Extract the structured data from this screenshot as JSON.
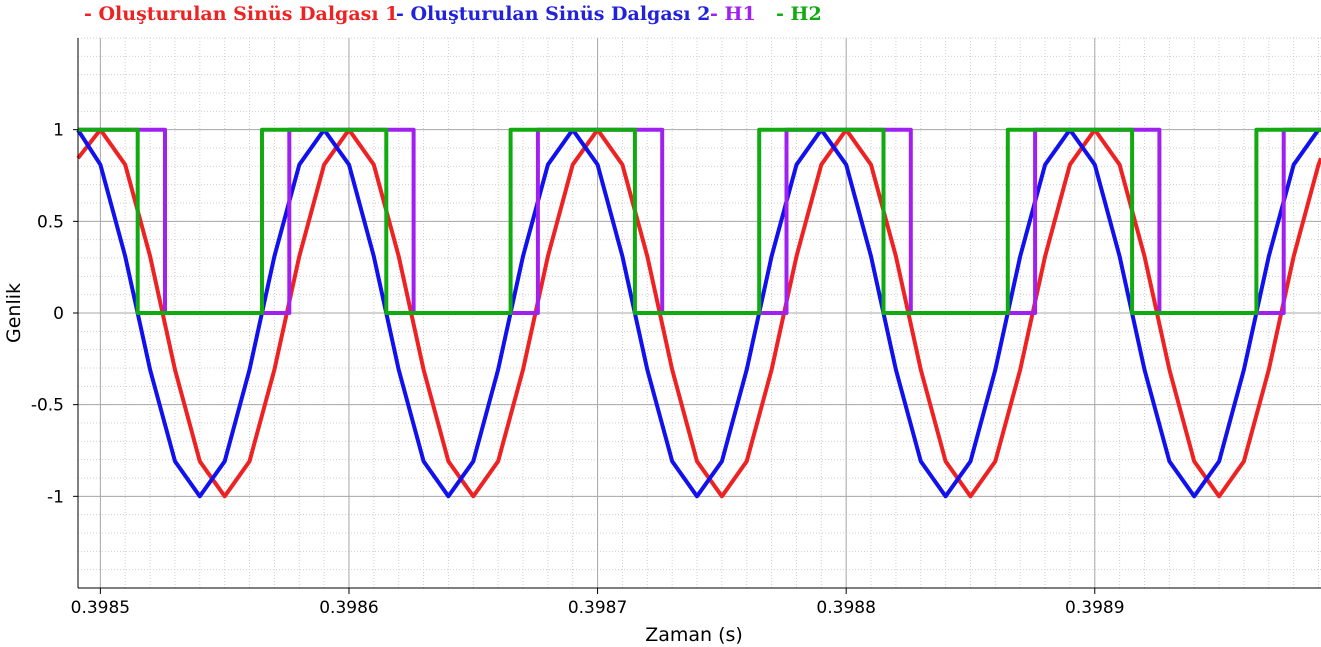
{
  "chart_data": {
    "type": "line",
    "title": "",
    "xlabel": "Zaman (s)",
    "ylabel": "Genlik",
    "xlim": [
      0.398491,
      0.398991
    ],
    "ylim": [
      -1.5,
      1.5
    ],
    "x_ticks": [
      0.3985,
      0.3986,
      0.3987,
      0.3988,
      0.3989
    ],
    "x_tick_labels": [
      "0.3985",
      "0.3986",
      "0.3987",
      "0.3988",
      "0.3989"
    ],
    "y_ticks": [
      1,
      0.5,
      0,
      -0.5,
      -1
    ],
    "y_tick_labels": [
      "1",
      "0.5",
      "0",
      "-0.5",
      "-1"
    ],
    "grid": true,
    "legend_position": "top-left",
    "series": [
      {
        "name": "Oluşturulan Sinüs Dalgası 1",
        "legend_label": "- Oluşturulan Sinüs Dalgası 1",
        "kind": "sine",
        "color": "#ee2222",
        "amplitude": 1,
        "period": 0.0001,
        "peak_x": [
          0.3986,
          0.3987,
          0.3988,
          0.3989
        ],
        "trough_x": [
          0.39855,
          0.39865,
          0.39875,
          0.39885,
          0.39895
        ],
        "y_range": [
          -1,
          1
        ]
      },
      {
        "name": "Oluşturulan Sinüs Dalgası 2",
        "legend_label": "- Oluşturulan Sinüs Dalgası 2",
        "kind": "sine",
        "color": "#1111ee",
        "amplitude": 1,
        "period": 0.0001,
        "peak_x": [
          0.39849,
          0.39859,
          0.39869,
          0.39879,
          0.39889,
          0.39899
        ],
        "trough_x": [
          0.39854,
          0.39864,
          0.39874,
          0.39884,
          0.39894
        ],
        "y_range": [
          -1,
          1
        ]
      },
      {
        "name": "H1",
        "legend_label": "- H1",
        "kind": "step",
        "color": "#a020f0",
        "x": [
          0.398491,
          0.398526,
          0.398576,
          0.398626,
          0.398676,
          0.398726,
          0.398776,
          0.398826,
          0.398876,
          0.398926,
          0.398976,
          0.398991
        ],
        "y": [
          1,
          0,
          1,
          0,
          1,
          0,
          1,
          0,
          1,
          0,
          1,
          1
        ]
      },
      {
        "name": "H2",
        "legend_label": "- H2",
        "kind": "step",
        "color": "#11aa11",
        "x": [
          0.398491,
          0.398515,
          0.398565,
          0.398615,
          0.398665,
          0.398715,
          0.398765,
          0.398815,
          0.398865,
          0.398915,
          0.398965,
          0.398991
        ],
        "y": [
          1,
          0,
          1,
          0,
          1,
          0,
          1,
          0,
          1,
          0,
          1,
          1
        ]
      }
    ]
  }
}
